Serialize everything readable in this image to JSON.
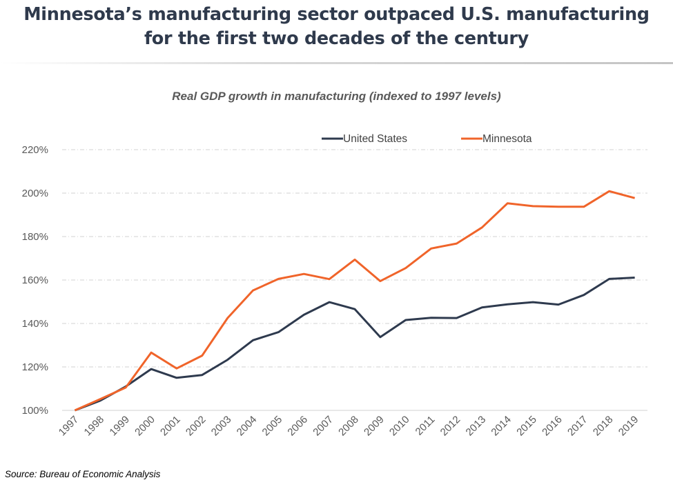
{
  "headline": {
    "line1": "Minnesota’s manufacturing sector outpaced U.S. manufacturing",
    "line2": "for the first two decades of the century"
  },
  "source": "Source: Bureau of Economic Analysis",
  "chart_data": {
    "type": "line",
    "title": "Real GDP growth in manufacturing (indexed to 1997 levels)",
    "xlabel": "",
    "ylabel": "",
    "ylim": [
      100,
      220
    ],
    "yticks": [
      100,
      120,
      140,
      160,
      180,
      200,
      220
    ],
    "ytick_labels": [
      "100%",
      "120%",
      "140%",
      "160%",
      "180%",
      "200%",
      "220%"
    ],
    "grid": true,
    "legend_position": "top-center",
    "categories": [
      "1997",
      "1998",
      "1999",
      "2000",
      "2001",
      "2002",
      "2003",
      "2004",
      "2005",
      "2006",
      "2007",
      "2008",
      "2009",
      "2010",
      "2011",
      "2012",
      "2013",
      "2014",
      "2015",
      "2016",
      "2017",
      "2018",
      "2019"
    ],
    "series": [
      {
        "name": "United States",
        "color": "#2e3a4e",
        "values": [
          100,
          104.5,
          111,
          119,
          115,
          116.3,
          123.3,
          132.3,
          136,
          144,
          149.8,
          146.6,
          133.7,
          141.6,
          142.6,
          142.5,
          147.4,
          148.8,
          149.8,
          148.7,
          153.1,
          160.5,
          161.1
        ]
      },
      {
        "name": "Minnesota",
        "color": "#f0642a",
        "values": [
          100,
          105.2,
          110.5,
          126.6,
          119.3,
          125.2,
          142.5,
          155.2,
          160.5,
          162.8,
          160.4,
          169.4,
          159.5,
          165.5,
          174.5,
          176.8,
          184.2,
          195.3,
          194,
          193.7,
          193.7,
          200.9,
          197.7
        ]
      }
    ]
  }
}
